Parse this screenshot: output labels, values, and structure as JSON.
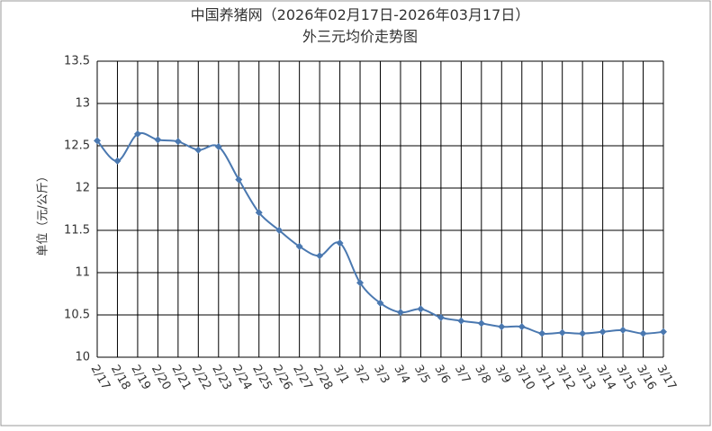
{
  "chart_data": {
    "type": "line",
    "title": "中国养猪网（2026年02月17日-2026年03月17日）",
    "subtitle": "外三元均价走势图",
    "y_label": "单位（元/公斤）",
    "categories": [
      "2/17",
      "2/18",
      "2/19",
      "2/20",
      "2/21",
      "2/22",
      "2/23",
      "2/24",
      "2/25",
      "2/26",
      "2/27",
      "2/28",
      "3/1",
      "3/2",
      "3/3",
      "3/4",
      "3/5",
      "3/6",
      "3/7",
      "3/8",
      "3/9",
      "3/10",
      "3/11",
      "3/12",
      "3/13",
      "3/14",
      "3/15",
      "3/16",
      "3/17"
    ],
    "series": [
      {
        "name": "外三元",
        "color": "#4a78b0",
        "values": [
          12.56,
          12.32,
          12.64,
          12.57,
          12.55,
          12.45,
          12.49,
          12.1,
          11.71,
          11.5,
          11.31,
          11.2,
          11.35,
          10.88,
          10.64,
          10.53,
          10.57,
          10.47,
          10.43,
          10.4,
          10.36,
          10.36,
          10.28,
          10.29,
          10.28,
          10.3,
          10.32,
          10.28,
          10.3
        ]
      }
    ],
    "ylim": [
      10,
      13.5
    ],
    "yticks": [
      10,
      10.5,
      11,
      11.5,
      12,
      12.5,
      13,
      13.5
    ],
    "grid": true
  }
}
